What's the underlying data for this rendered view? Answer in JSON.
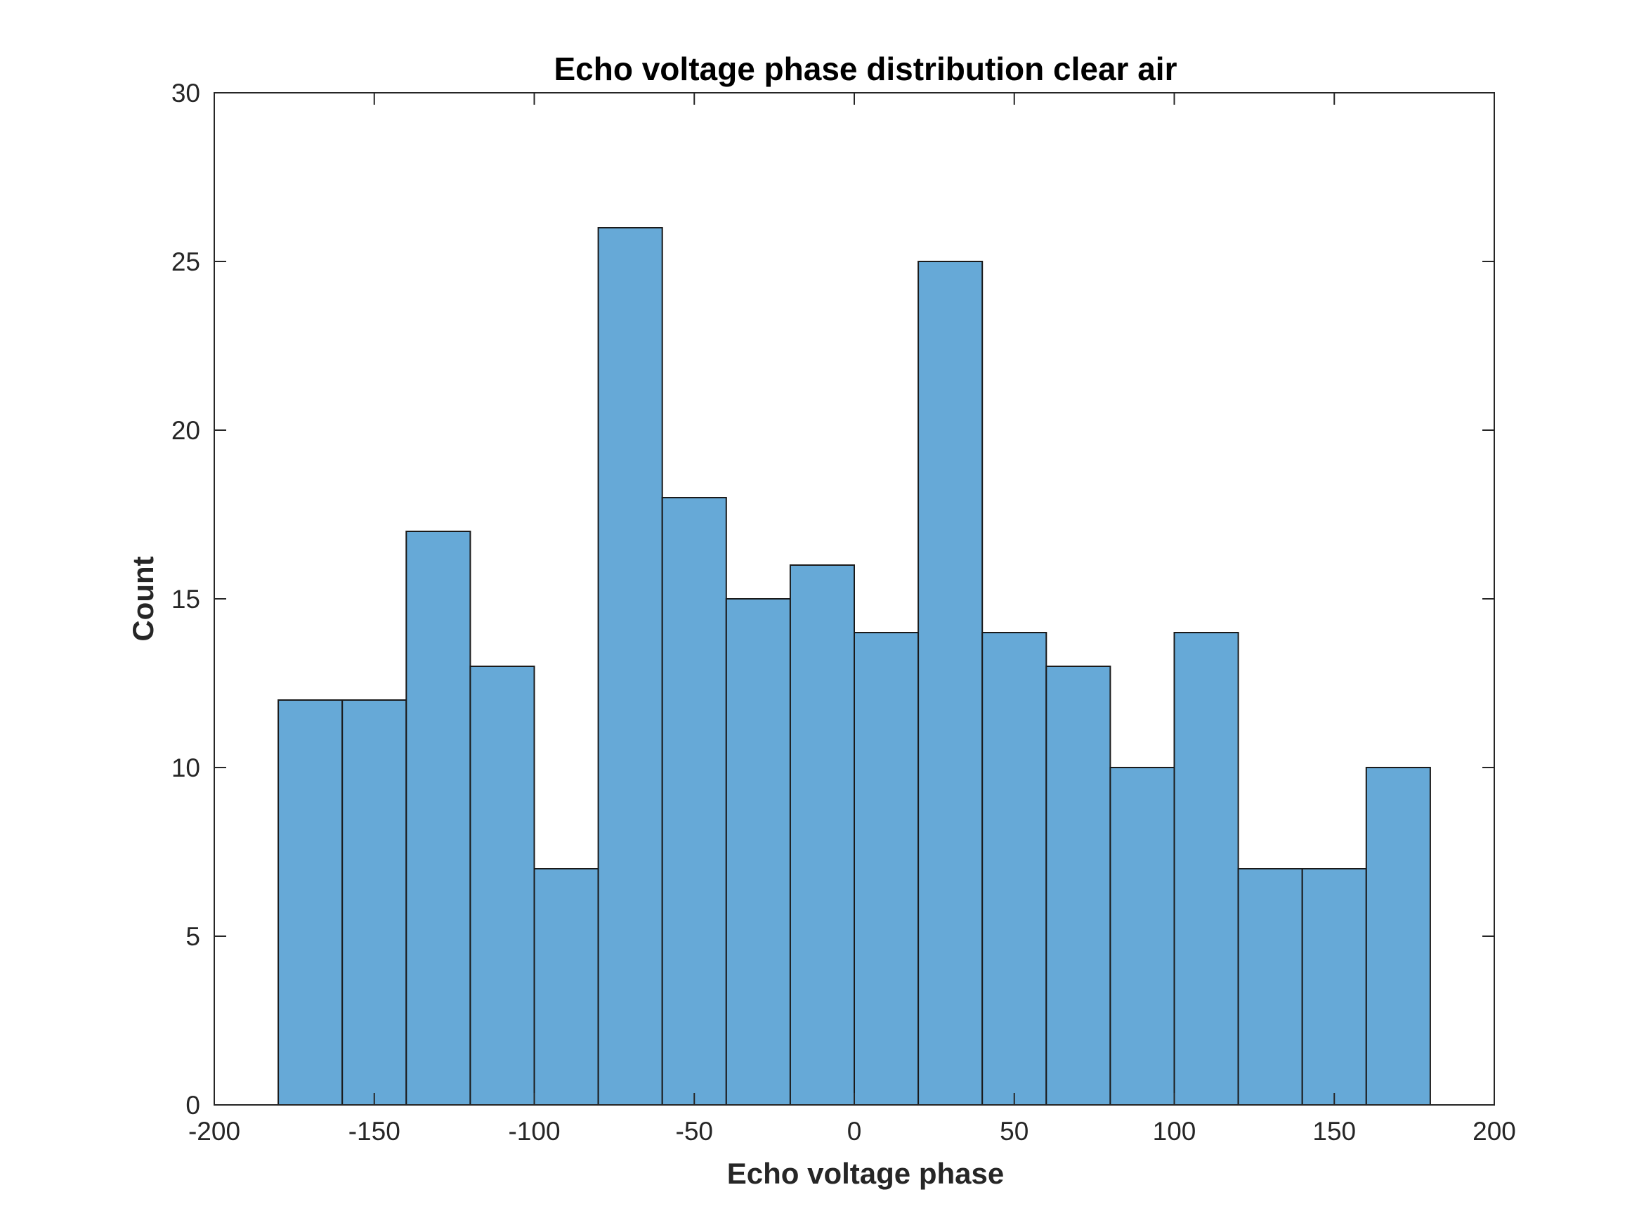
{
  "chart_data": {
    "type": "bar",
    "title": "Echo voltage phase distribution clear air",
    "xlabel": "Echo voltage phase",
    "ylabel": "Count",
    "xlim": [
      -200,
      200
    ],
    "ylim": [
      0,
      30
    ],
    "xticks": [
      -200,
      -150,
      -100,
      -50,
      0,
      50,
      100,
      150,
      200
    ],
    "yticks": [
      0,
      5,
      10,
      15,
      20,
      25,
      30
    ],
    "bin_edges": [
      -180,
      -160,
      -140,
      -120,
      -100,
      -80,
      -60,
      -40,
      -20,
      0,
      20,
      40,
      60,
      80,
      100,
      120,
      140,
      160,
      180
    ],
    "values": [
      12,
      12,
      17,
      13,
      7,
      26,
      18,
      15,
      16,
      14,
      25,
      14,
      13,
      10,
      14,
      7,
      7,
      10
    ],
    "bar_color": "#66a9d7",
    "edge_color": "#1a1a1a",
    "grid": false,
    "legend": "none"
  }
}
